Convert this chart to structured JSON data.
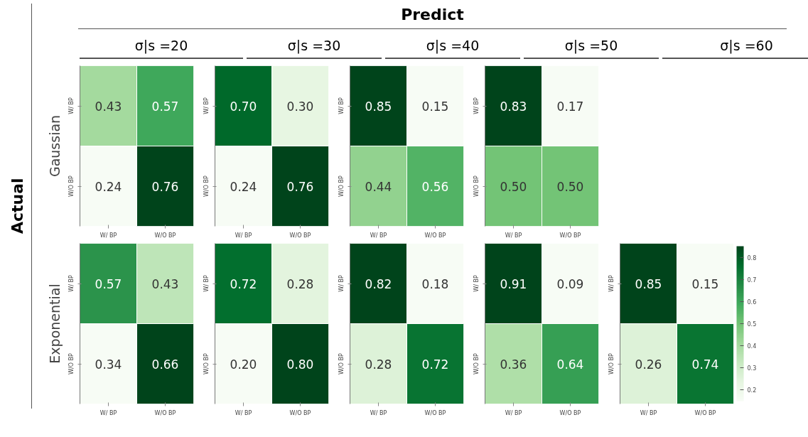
{
  "chart_data": [
    {
      "type": "heatmap",
      "title": "σ|s =20",
      "ylabel": "Gaussian",
      "annotations": [
        "Predict",
        "Actual"
      ],
      "categories": [
        "W/ BP",
        "W/O BP"
      ],
      "y_categories": [
        "W/ BP",
        "W/O BP"
      ],
      "cells": [
        [
          0.43,
          0.57
        ],
        [
          0.24,
          0.76
        ]
      ],
      "data_labels": true
    },
    {
      "type": "heatmap",
      "title": "σ|s =30",
      "categories": [
        "W/ BP",
        "W/O BP"
      ],
      "y_categories": [
        "W/ BP",
        "W/O BP"
      ],
      "cells": [
        [
          0.7,
          0.3
        ],
        [
          0.24,
          0.76
        ]
      ],
      "cell_labels": [
        [
          "0.70",
          "0.30"
        ],
        [
          "0.24",
          "0.76"
        ]
      ],
      "data_labels": true
    },
    {
      "type": "heatmap",
      "title": "σ|s =40",
      "categories": [
        "W/ BP",
        "W/O BP"
      ],
      "y_categories": [
        "W/ BP",
        "W/O BP"
      ],
      "cells": [
        [
          0.85,
          0.15
        ],
        [
          0.44,
          0.56
        ]
      ],
      "data_labels": true
    },
    {
      "type": "heatmap",
      "title": "σ|s =50",
      "categories": [
        "W/ BP",
        "W/O BP"
      ],
      "y_categories": [
        "W/ BP",
        "W/O BP"
      ],
      "cells": [
        [
          0.83,
          0.17
        ],
        [
          0.5,
          0.5
        ]
      ],
      "cell_labels": [
        [
          "0.83",
          "0.17"
        ],
        [
          "0.50",
          "0.50"
        ]
      ],
      "data_labels": true
    },
    {
      "type": "heatmap",
      "ylabel": "Exponential",
      "categories": [
        "W/ BP",
        "W/O BP"
      ],
      "y_categories": [
        "W/ BP",
        "W/O BP"
      ],
      "cells": [
        [
          0.57,
          0.43
        ],
        [
          0.34,
          0.66
        ]
      ],
      "data_labels": true
    },
    {
      "type": "heatmap",
      "categories": [
        "W/ BP",
        "W/O BP"
      ],
      "y_categories": [
        "W/ BP",
        "W/O BP"
      ],
      "cells": [
        [
          0.72,
          0.28
        ],
        [
          0.2,
          0.8
        ]
      ],
      "cell_labels": [
        [
          "0.72",
          "0.28"
        ],
        [
          "0.20",
          "0.80"
        ]
      ],
      "data_labels": true
    },
    {
      "type": "heatmap",
      "categories": [
        "W/ BP",
        "W/O BP"
      ],
      "y_categories": [
        "W/ BP",
        "W/O BP"
      ],
      "cells": [
        [
          0.82,
          0.18
        ],
        [
          0.28,
          0.72
        ]
      ],
      "data_labels": true
    },
    {
      "type": "heatmap",
      "categories": [
        "W/ BP",
        "W/O BP"
      ],
      "y_categories": [
        "W/ BP",
        "W/O BP"
      ],
      "cells": [
        [
          0.91,
          0.09
        ],
        [
          0.36,
          0.64
        ]
      ],
      "data_labels": true
    },
    {
      "type": "heatmap",
      "title": "σ|s =60",
      "categories": [
        "W/ BP",
        "W/O BP"
      ],
      "y_categories": [
        "W/ BP",
        "W/O BP"
      ],
      "cells": [
        [
          0.85,
          0.15
        ],
        [
          0.26,
          0.74
        ]
      ],
      "data_labels": true,
      "clim": [
        0.15,
        0.85
      ],
      "cticks": [
        0.2,
        0.3,
        0.4,
        0.5,
        0.6,
        0.7,
        0.8
      ]
    }
  ]
}
